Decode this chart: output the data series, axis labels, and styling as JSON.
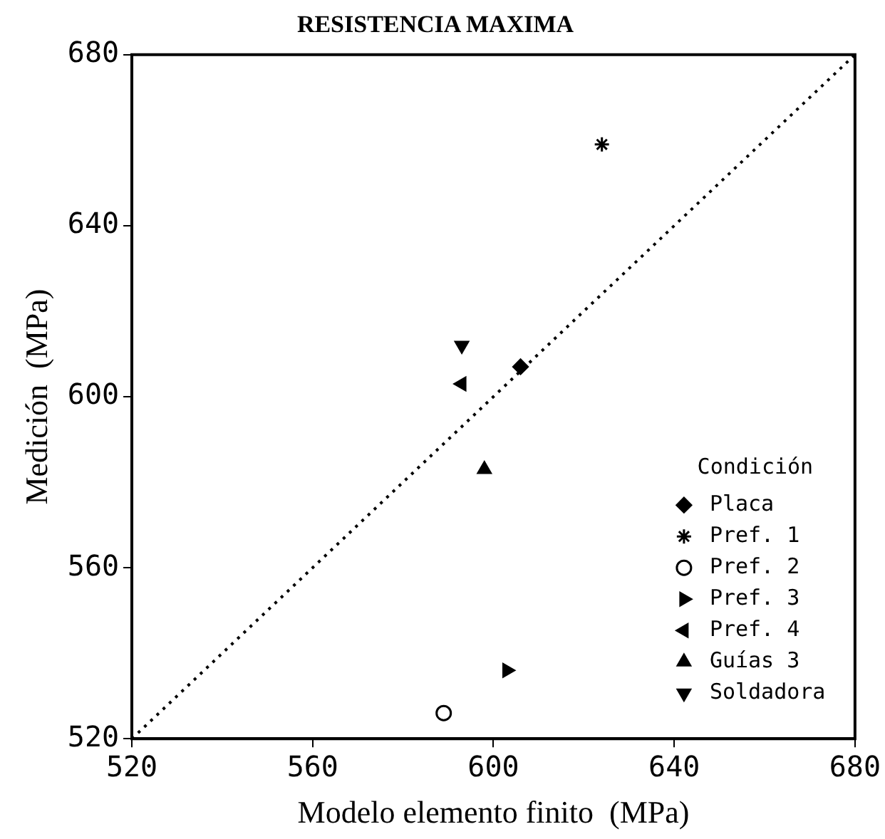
{
  "chart_data": {
    "type": "scatter",
    "title": "RESISTENCIA MAXIMA",
    "xlabel": "Modelo elemento finito  (MPa)",
    "ylabel": "Medición  (MPa)",
    "legend_title": "Condición",
    "legend": "bottom right",
    "grid": false,
    "xlim": [
      520,
      680
    ],
    "xticks": [
      520,
      560,
      600,
      640,
      680
    ],
    "ylim": [
      520,
      680
    ],
    "yticks": [
      520,
      560,
      600,
      640,
      680
    ],
    "series": [
      {
        "name": "Placa",
        "color": "#000000",
        "marker": "diamond",
        "x": [
          606
        ],
        "values": [
          607
        ]
      },
      {
        "name": "Pref. 1",
        "color": "#000000",
        "marker": "cross",
        "x": [
          624
        ],
        "values": [
          659
        ]
      },
      {
        "name": "Pref. 2",
        "color": "#000000",
        "marker": "circle",
        "x": [
          589
        ],
        "values": [
          526
        ]
      },
      {
        "name": "Pref. 3",
        "color": "#000000",
        "marker": "triangle-right",
        "x": [
          603
        ],
        "values": [
          536
        ]
      },
      {
        "name": "Pref. 4",
        "color": "#000000",
        "marker": "triangle-left",
        "x": [
          593
        ],
        "values": [
          603
        ]
      },
      {
        "name": "Guías 3",
        "color": "#000000",
        "marker": "triangle",
        "x": [
          598
        ],
        "values": [
          583
        ]
      },
      {
        "name": "Soldadora",
        "color": "#000000",
        "marker": "triangle-down",
        "x": [
          593
        ],
        "values": [
          612
        ]
      },
      {
        "type": "line",
        "color": "#000000",
        "marker": "none",
        "line_style": "dotted",
        "x": [
          520,
          680
        ],
        "values": [
          520,
          680
        ]
      }
    ]
  }
}
